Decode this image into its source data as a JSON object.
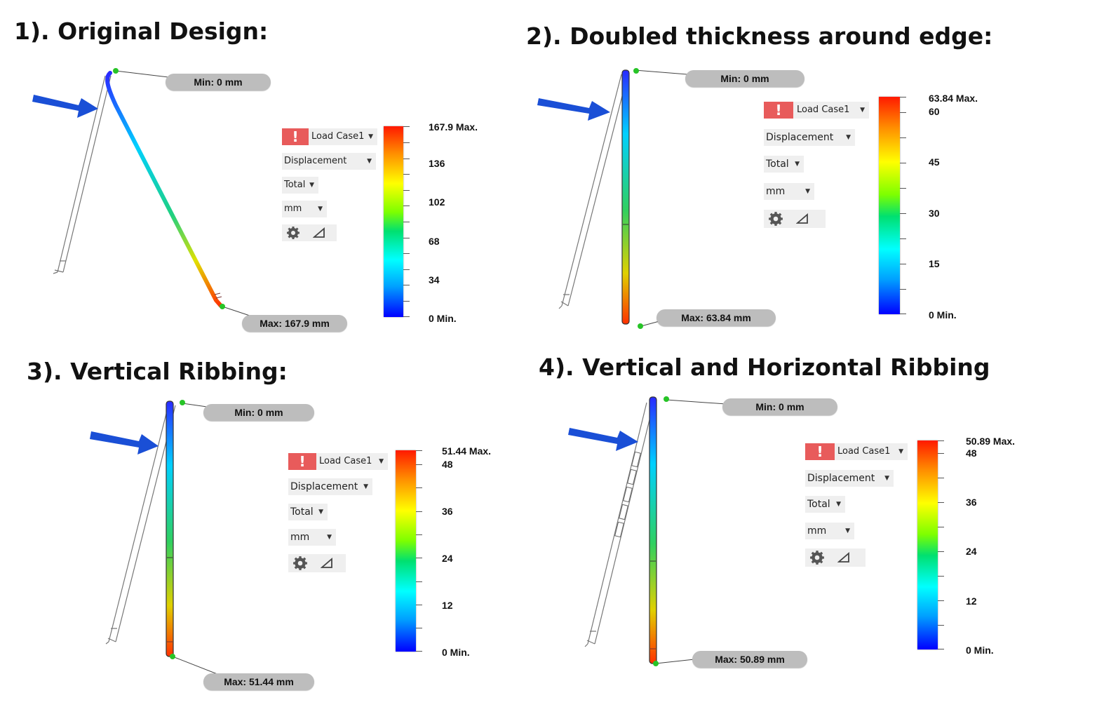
{
  "panels": [
    {
      "title": "1). Original Design:",
      "min_label": "Min: 0 mm",
      "max_label": "Max: 167.9 mm",
      "load_case": "Load Case1",
      "result_type": "Displacement",
      "component": "Total",
      "unit": "mm",
      "scale_labels": [
        "167.9 Max.",
        "136",
        "102",
        "68",
        "34",
        "0 Min."
      ],
      "max_value": 167.9,
      "min_value": 0
    },
    {
      "title": "2). Doubled thickness around edge:",
      "min_label": "Min: 0 mm",
      "max_label": "Max: 63.84 mm",
      "load_case": "Load Case1",
      "result_type": "Displacement",
      "component": "Total",
      "unit": "mm",
      "scale_labels": [
        "63.84 Max.",
        "60",
        "45",
        "30",
        "15",
        "0 Min."
      ],
      "max_value": 63.84,
      "min_value": 0
    },
    {
      "title": "3). Vertical Ribbing:",
      "min_label": "Min: 0 mm",
      "max_label": "Max: 51.44 mm",
      "load_case": "Load Case1",
      "result_type": "Displacement",
      "component": "Total",
      "unit": "mm",
      "scale_labels": [
        "51.44 Max.",
        "48",
        "36",
        "24",
        "12",
        "0 Min."
      ],
      "max_value": 51.44,
      "min_value": 0
    },
    {
      "title": "4). Vertical and Horizontal Ribbing",
      "min_label": "Min: 0 mm",
      "max_label": "Max: 50.89 mm",
      "load_case": "Load Case1",
      "result_type": "Displacement",
      "component": "Total",
      "unit": "mm",
      "scale_labels": [
        "50.89 Max.",
        "48",
        "36",
        "24",
        "12",
        "0 Min."
      ],
      "max_value": 50.89,
      "min_value": 0
    }
  ],
  "icons": {
    "alert": "exclamation-icon",
    "settings": "gear-icon",
    "triangle": "triangle-icon",
    "dropdown": "caret-down-icon",
    "load_arrow": "arrow-icon"
  },
  "colors": {
    "alert_bg": "#e85b5b",
    "arrow": "#1a4fd6",
    "pill_bg": "#bdbdbd",
    "control_bg": "#efefef"
  }
}
